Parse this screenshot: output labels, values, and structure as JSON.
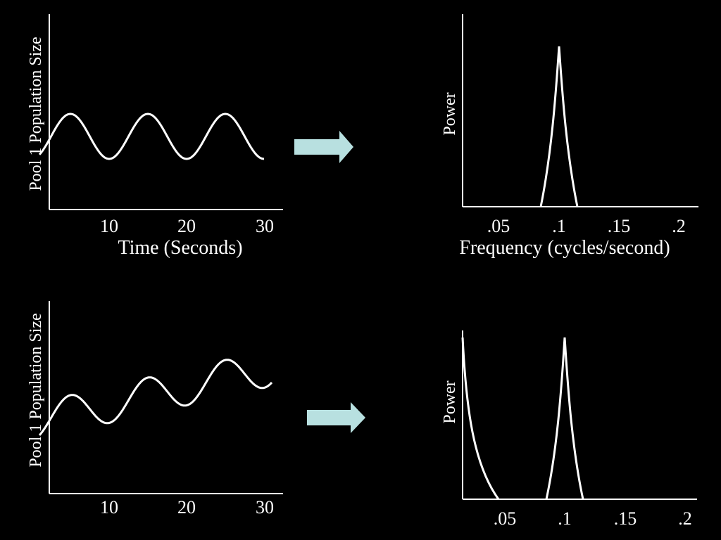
{
  "colors": {
    "background": "#000000",
    "foreground": "#ffffff",
    "arrow": "#b8e0e0"
  },
  "icons": {
    "arrow": "right-arrow-icon"
  },
  "panels": [
    {
      "id": "top",
      "time_plot": {
        "ylabel": "Pool 1 Population Size",
        "xlabel": "Time (Seconds)",
        "x_ticks": [
          "10",
          "20",
          "30"
        ],
        "signal": {
          "x_start": 1,
          "x_end": 30,
          "period": 10,
          "amplitude": 1,
          "trend": 0
        }
      },
      "spectrum_plot": {
        "ylabel": "Power",
        "xlabel": "Frequency (cycles/second)",
        "x_ticks": [
          ".05",
          ".1",
          ".15",
          ".2"
        ],
        "peaks": [
          {
            "frequency": 0.1,
            "relative_power": 1.0
          }
        ]
      }
    },
    {
      "id": "bottom",
      "time_plot": {
        "ylabel": "Pool 1 Population Size",
        "x_ticks": [
          "10",
          "20",
          "30"
        ],
        "signal": {
          "x_start": 1,
          "x_end": 31,
          "period": 10,
          "amplitude": 1,
          "trend": 1
        }
      },
      "spectrum_plot": {
        "ylabel": "Power",
        "x_ticks": [
          ".05",
          ".1",
          ".15",
          ".2"
        ],
        "peaks": [
          {
            "frequency": 0.0,
            "relative_power": 1.0
          },
          {
            "frequency": 0.1,
            "relative_power": 1.0
          }
        ]
      }
    }
  ]
}
